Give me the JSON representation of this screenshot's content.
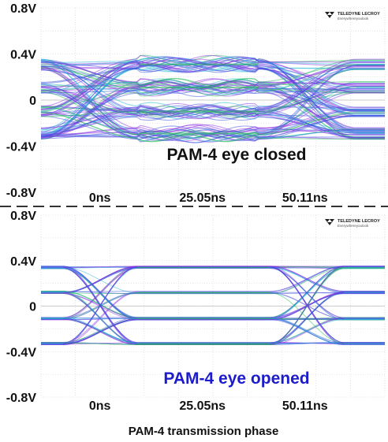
{
  "chart_data": [
    {
      "type": "line",
      "subtype": "eye-diagram",
      "annotation": "PAM-4 eye closed",
      "annotation_color": "#111111",
      "y_ticks": [
        "0.8V",
        "0.4V",
        "0",
        "-0.4V",
        "-0.8V"
      ],
      "y_tick_values": [
        0.8,
        0.4,
        0,
        -0.4,
        -0.8
      ],
      "x_ticks": [
        "0ns",
        "25.05ns",
        "50.11ns"
      ],
      "x_tick_values": [
        0,
        25.05,
        50.11
      ],
      "xlim": [
        -14,
        70
      ],
      "ylim": [
        -0.8,
        0.8
      ],
      "levels": [
        0.31,
        0.11,
        -0.1,
        -0.29
      ],
      "level_spread": 0.05,
      "crossings_ns": [
        -2,
        51
      ],
      "eye_open": false,
      "grid": true,
      "logo": {
        "top": "TELEDYNE LECROY",
        "sub": "Everywhereyoulook"
      }
    },
    {
      "type": "line",
      "subtype": "eye-diagram",
      "annotation": "PAM-4 eye opened",
      "annotation_color": "#1c1ccc",
      "y_ticks": [
        "0.8V",
        "0.4V",
        "0",
        "-0.4V",
        "-0.8V"
      ],
      "y_tick_values": [
        0.8,
        0.4,
        0,
        -0.4,
        -0.8
      ],
      "x_ticks": [
        "0ns",
        "25.05ns",
        "50.11ns"
      ],
      "x_tick_values": [
        0,
        25.05,
        50.11
      ],
      "xlim": [
        -14,
        70
      ],
      "ylim": [
        -0.8,
        0.8
      ],
      "levels": [
        0.34,
        0.12,
        -0.11,
        -0.33
      ],
      "level_spread": 0.012,
      "crossings_ns": [
        0.5,
        51
      ],
      "eye_open": true,
      "grid": true,
      "logo": {
        "top": "TELEDYNE LECROY",
        "sub": "Everywhereyoulook"
      }
    }
  ],
  "caption": "PAM-4 transmission phase",
  "colors": {
    "trace_purple": "#8a2be2",
    "trace_blue": "#3b4fe0",
    "trace_green": "#22bb55",
    "trace_cyan": "#20b8d8",
    "grid": "#cfcfcf",
    "divider": "#333333"
  }
}
